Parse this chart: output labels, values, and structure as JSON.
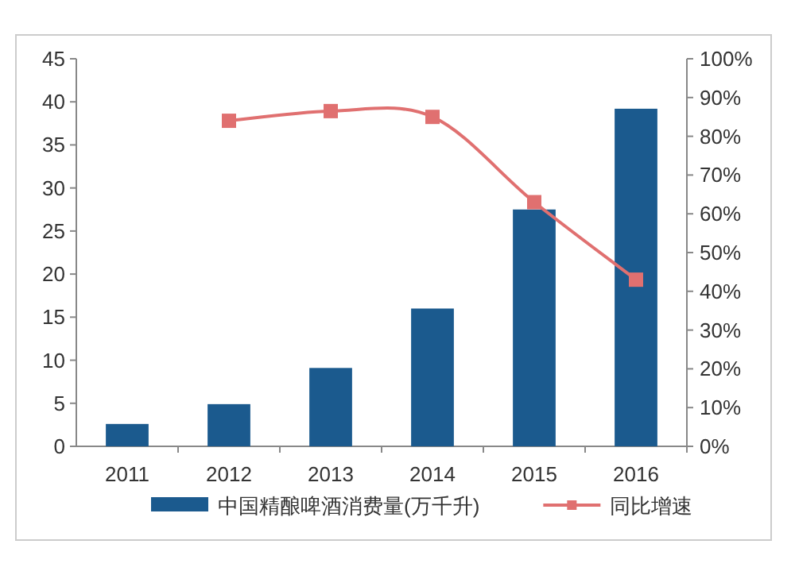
{
  "chart_data": {
    "type": "bar",
    "categories": [
      "2011",
      "2012",
      "2013",
      "2014",
      "2015",
      "2016"
    ],
    "series": [
      {
        "name": "中国精酿啤酒消费量(万千升)",
        "color": "#1b5a8e",
        "values": [
          2.6,
          4.9,
          9.1,
          16,
          27.5,
          39.2
        ]
      },
      {
        "name": "同比增速",
        "type": "line",
        "axis": "y2",
        "color": "#e07070",
        "marker": "square",
        "values": [
          null,
          84,
          86.5,
          85,
          63,
          43
        ]
      }
    ],
    "ylim": [
      0,
      45
    ],
    "yticks": [
      0,
      5,
      10,
      15,
      20,
      25,
      30,
      35,
      40,
      45
    ],
    "y2lim": [
      0,
      100
    ],
    "y2ticks": [
      {
        "value": 0,
        "label": "0%"
      },
      {
        "value": 10,
        "label": "10%"
      },
      {
        "value": 20,
        "label": "20%"
      },
      {
        "value": 30,
        "label": "30%"
      },
      {
        "value": 40,
        "label": "40%"
      },
      {
        "value": 50,
        "label": "50%"
      },
      {
        "value": 60,
        "label": "60%"
      },
      {
        "value": 70,
        "label": "70%"
      },
      {
        "value": 80,
        "label": "80%"
      },
      {
        "value": 90,
        "label": "90%"
      },
      {
        "value": 100,
        "label": "100%"
      }
    ],
    "grid": false,
    "legend": "bottom"
  }
}
